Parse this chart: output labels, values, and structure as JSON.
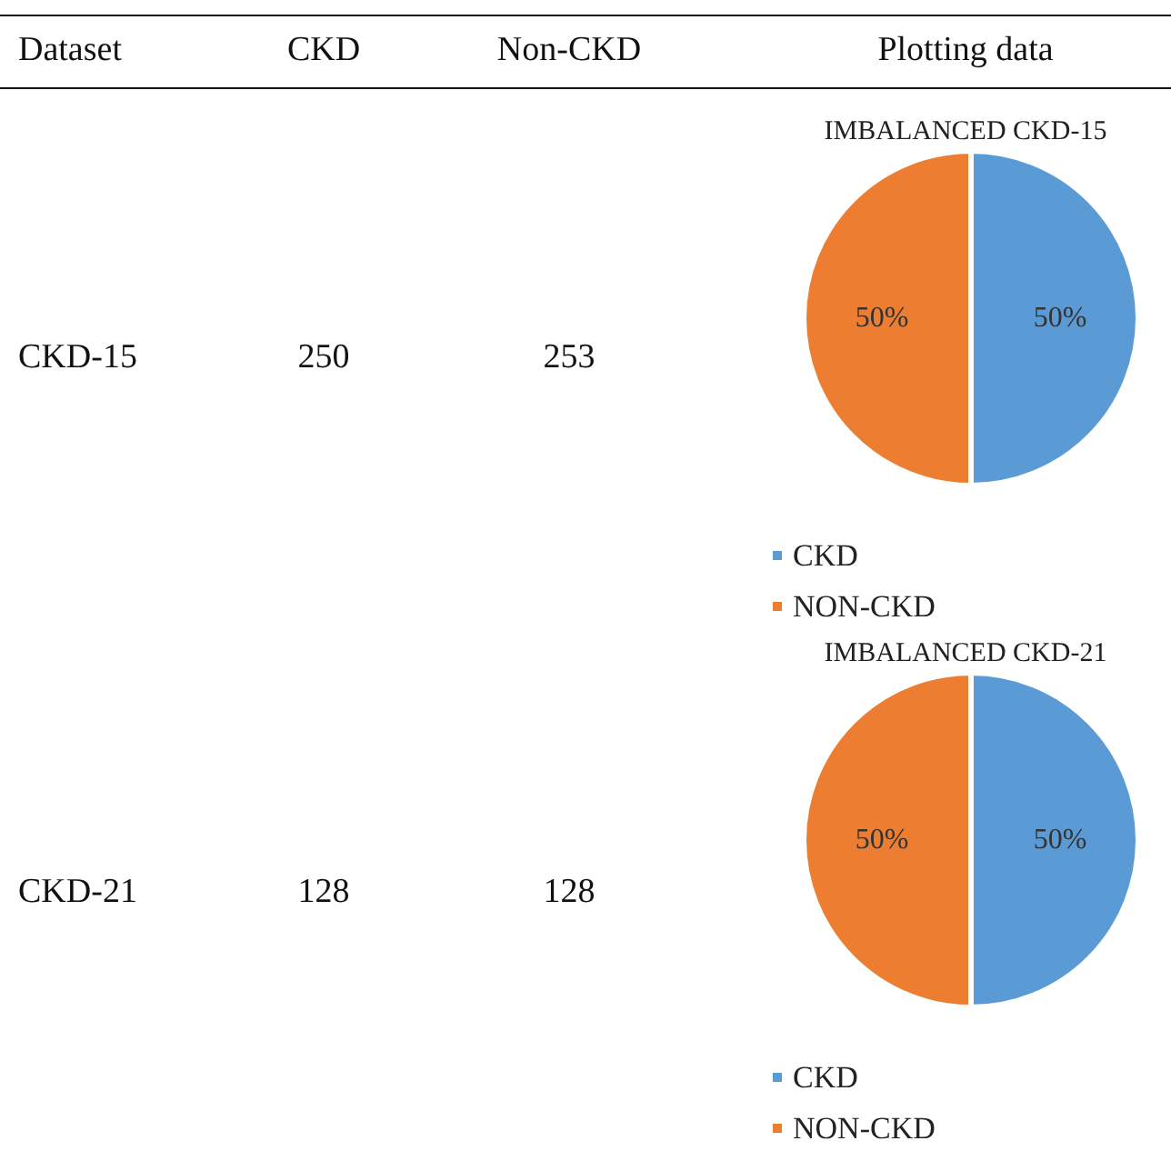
{
  "chart_data": [
    {
      "type": "other",
      "annotations": [
        "Dataset",
        "CKD",
        "Non-CKD",
        "Plotting data",
        "CKD-15",
        "250",
        "253",
        "CKD-21",
        "128",
        "128"
      ]
    },
    {
      "type": "pie",
      "title": "IMBALANCED CKD-15",
      "categories": [
        "CKD",
        "NON-CKD"
      ],
      "values": [
        50,
        50
      ],
      "colors": [
        "#5b9bd5",
        "#ed7d31"
      ],
      "value_labels": [
        "50%",
        "50%"
      ],
      "legend": "bottom left"
    },
    {
      "type": "pie",
      "title": "IMBALANCED CKD-21",
      "categories": [
        "CKD",
        "NON-CKD"
      ],
      "values": [
        50,
        50
      ],
      "colors": [
        "#5b9bd5",
        "#ed7d31"
      ],
      "value_labels": [
        "50%",
        "50%"
      ],
      "legend": "bottom left"
    }
  ]
}
